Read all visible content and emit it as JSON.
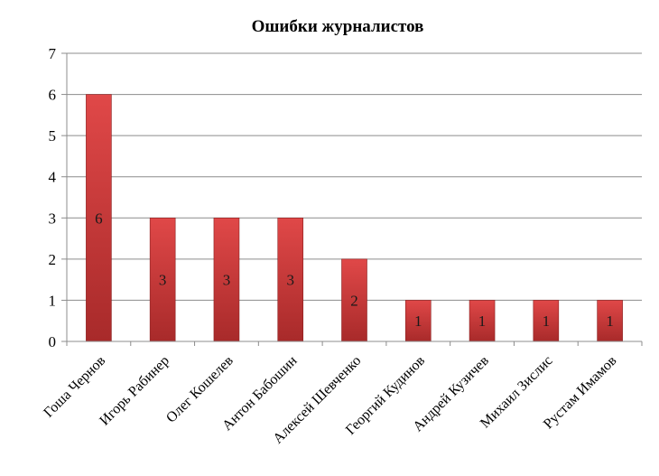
{
  "chart_data": {
    "type": "bar",
    "title": "Ошибки журналистов",
    "categories": [
      "Гоша Чернов",
      "Игорь Рабинер",
      "Олег Кошелев",
      "Антон Бабошин",
      "Алексей Шевченко",
      "Георгий Кудинов",
      "Андрей Кузичев",
      "Михаил Зислис",
      "Рустам Имамов"
    ],
    "values": [
      6,
      3,
      3,
      3,
      2,
      1,
      1,
      1,
      1
    ],
    "data_labels": [
      "6",
      "3",
      "3",
      "3",
      "2",
      "1",
      "1",
      "1",
      "1"
    ],
    "ylim": [
      0,
      7
    ],
    "yticks": [
      "0",
      "1",
      "2",
      "3",
      "4",
      "5",
      "6",
      "7"
    ],
    "grid": true,
    "legend": "none",
    "colors": {
      "bar_top": "#e04848",
      "bar_bottom": "#a82a2a",
      "grid": "#8c8c8c"
    }
  }
}
